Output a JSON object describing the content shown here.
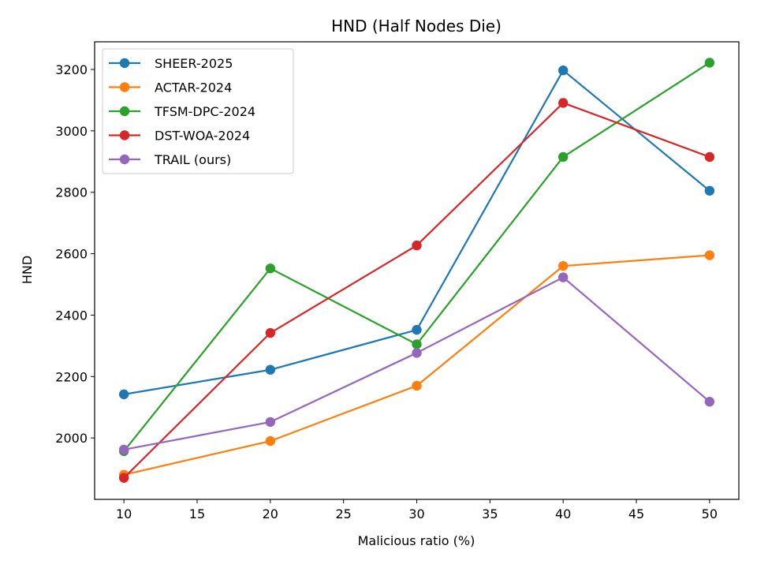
{
  "chart_data": {
    "type": "line",
    "title": "HND (Half Nodes Die)",
    "xlabel": "Malicious ratio (%)",
    "ylabel": "HND",
    "x": [
      10,
      20,
      30,
      40,
      50
    ],
    "xlim": [
      8,
      52
    ],
    "ylim": [
      1800,
      3290
    ],
    "xticks": [
      10,
      15,
      20,
      25,
      30,
      35,
      40,
      45,
      50
    ],
    "yticks": [
      2000,
      2200,
      2400,
      2600,
      2800,
      3000,
      3200
    ],
    "grid": false,
    "legend_position": "top-left",
    "series": [
      {
        "name": "SHEER-2025",
        "color": "#1f77b4",
        "values": [
          2142,
          2222,
          2352,
          3197,
          2805
        ]
      },
      {
        "name": "ACTAR-2024",
        "color": "#ff7f0e",
        "values": [
          1880,
          1990,
          2170,
          2560,
          2595
        ]
      },
      {
        "name": "TFSM-DPC-2024",
        "color": "#2ca02c",
        "values": [
          1957,
          2552,
          2305,
          2915,
          3222
        ]
      },
      {
        "name": "DST-WOA-2024",
        "color": "#d62728",
        "values": [
          1870,
          2342,
          2627,
          3091,
          2915
        ]
      },
      {
        "name": "TRAIL (ours)",
        "color": "#9467bd",
        "values": [
          1962,
          2052,
          2277,
          2523,
          2118
        ]
      }
    ]
  }
}
